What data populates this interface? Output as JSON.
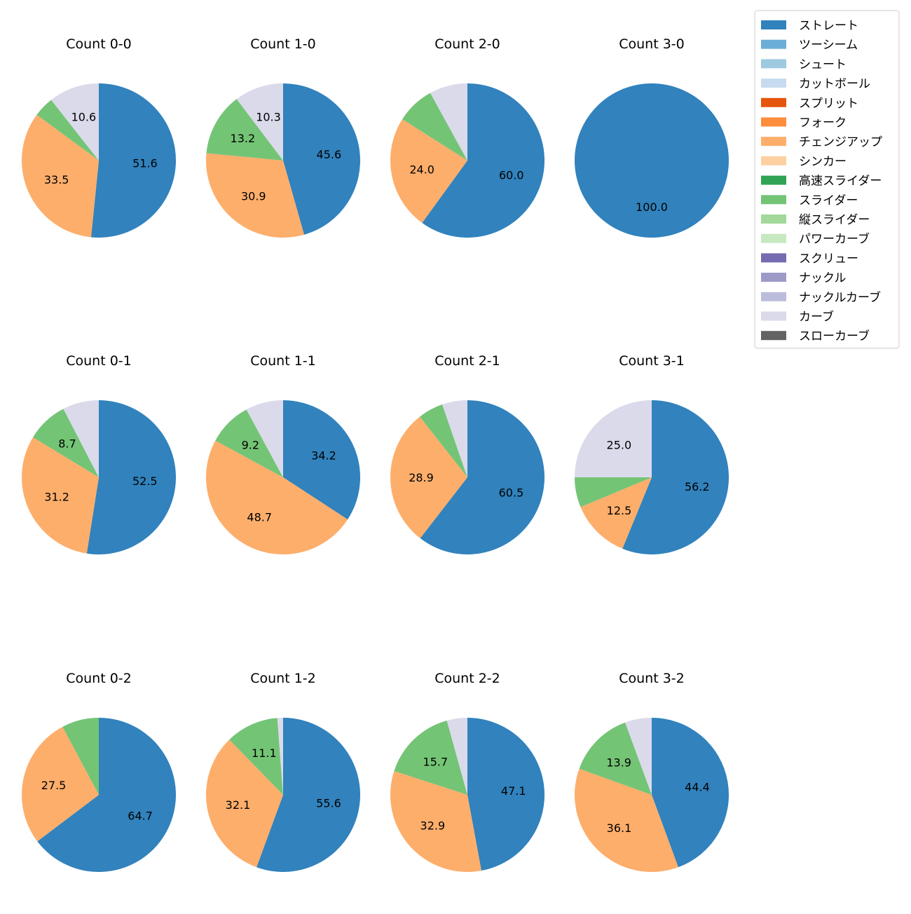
{
  "chart_data": {
    "type": "pie",
    "legend": {
      "placement": "upper-right",
      "entries": [
        {
          "name": "ストレート",
          "color": "#3182bd"
        },
        {
          "name": "ツーシーム",
          "color": "#6baed6"
        },
        {
          "name": "シュート",
          "color": "#9ecae1"
        },
        {
          "name": "カットボール",
          "color": "#c6dbef"
        },
        {
          "name": "スプリット",
          "color": "#e6550d"
        },
        {
          "name": "フォーク",
          "color": "#fd8d3c"
        },
        {
          "name": "チェンジアップ",
          "color": "#fdae6b"
        },
        {
          "name": "シンカー",
          "color": "#fdd0a2"
        },
        {
          "name": "高速スライダー",
          "color": "#31a354"
        },
        {
          "name": "スライダー",
          "color": "#74c476"
        },
        {
          "name": "縦スライダー",
          "color": "#a1d99b"
        },
        {
          "name": "パワーカーブ",
          "color": "#c7e9c0"
        },
        {
          "name": "スクリュー",
          "color": "#756bb1"
        },
        {
          "name": "ナックル",
          "color": "#9e9ac8"
        },
        {
          "name": "ナックルカーブ",
          "color": "#bcbddc"
        },
        {
          "name": "カーブ",
          "color": "#dadaeb"
        },
        {
          "name": "スローカーブ",
          "color": "#636363"
        }
      ]
    },
    "charts": [
      {
        "title": "Count 0-0",
        "slices": [
          {
            "pitch": "ストレート",
            "value": 51.6,
            "label": "51.6"
          },
          {
            "pitch": "チェンジアップ",
            "value": 33.5,
            "label": "33.5"
          },
          {
            "pitch": "スライダー",
            "value": 4.3,
            "label": ""
          },
          {
            "pitch": "カーブ",
            "value": 10.6,
            "label": "10.6"
          }
        ]
      },
      {
        "title": "Count 1-0",
        "slices": [
          {
            "pitch": "ストレート",
            "value": 45.6,
            "label": "45.6"
          },
          {
            "pitch": "チェンジアップ",
            "value": 30.9,
            "label": "30.9"
          },
          {
            "pitch": "スライダー",
            "value": 13.2,
            "label": "13.2"
          },
          {
            "pitch": "カーブ",
            "value": 10.3,
            "label": "10.3"
          }
        ]
      },
      {
        "title": "Count 2-0",
        "slices": [
          {
            "pitch": "ストレート",
            "value": 60.0,
            "label": "60.0"
          },
          {
            "pitch": "チェンジアップ",
            "value": 24.0,
            "label": "24.0"
          },
          {
            "pitch": "スライダー",
            "value": 8.0,
            "label": ""
          },
          {
            "pitch": "カーブ",
            "value": 8.0,
            "label": ""
          }
        ]
      },
      {
        "title": "Count 3-0",
        "slices": [
          {
            "pitch": "ストレート",
            "value": 100.0,
            "label": "100.0"
          }
        ]
      },
      {
        "title": "Count 0-1",
        "slices": [
          {
            "pitch": "ストレート",
            "value": 52.5,
            "label": "52.5"
          },
          {
            "pitch": "チェンジアップ",
            "value": 31.2,
            "label": "31.2"
          },
          {
            "pitch": "スライダー",
            "value": 8.7,
            "label": "8.7"
          },
          {
            "pitch": "カーブ",
            "value": 7.6,
            "label": ""
          }
        ]
      },
      {
        "title": "Count 1-1",
        "slices": [
          {
            "pitch": "ストレート",
            "value": 34.2,
            "label": "34.2"
          },
          {
            "pitch": "チェンジアップ",
            "value": 48.7,
            "label": "48.7"
          },
          {
            "pitch": "スライダー",
            "value": 9.2,
            "label": "9.2"
          },
          {
            "pitch": "カーブ",
            "value": 7.9,
            "label": ""
          }
        ]
      },
      {
        "title": "Count 2-1",
        "slices": [
          {
            "pitch": "ストレート",
            "value": 60.5,
            "label": "60.5"
          },
          {
            "pitch": "チェンジアップ",
            "value": 28.9,
            "label": "28.9"
          },
          {
            "pitch": "スライダー",
            "value": 5.3,
            "label": ""
          },
          {
            "pitch": "カーブ",
            "value": 5.3,
            "label": ""
          }
        ]
      },
      {
        "title": "Count 3-1",
        "slices": [
          {
            "pitch": "ストレート",
            "value": 56.2,
            "label": "56.2"
          },
          {
            "pitch": "チェンジアップ",
            "value": 12.5,
            "label": "12.5"
          },
          {
            "pitch": "スライダー",
            "value": 6.3,
            "label": ""
          },
          {
            "pitch": "カーブ",
            "value": 25.0,
            "label": "25.0"
          }
        ]
      },
      {
        "title": "Count 0-2",
        "slices": [
          {
            "pitch": "ストレート",
            "value": 64.7,
            "label": "64.7"
          },
          {
            "pitch": "チェンジアップ",
            "value": 27.5,
            "label": "27.5"
          },
          {
            "pitch": "スライダー",
            "value": 7.8,
            "label": ""
          }
        ]
      },
      {
        "title": "Count 1-2",
        "slices": [
          {
            "pitch": "ストレート",
            "value": 55.6,
            "label": "55.6"
          },
          {
            "pitch": "チェンジアップ",
            "value": 32.1,
            "label": "32.1"
          },
          {
            "pitch": "スライダー",
            "value": 11.1,
            "label": "11.1"
          },
          {
            "pitch": "カーブ",
            "value": 1.2,
            "label": ""
          }
        ]
      },
      {
        "title": "Count 2-2",
        "slices": [
          {
            "pitch": "ストレート",
            "value": 47.1,
            "label": "47.1"
          },
          {
            "pitch": "チェンジアップ",
            "value": 32.9,
            "label": "32.9"
          },
          {
            "pitch": "スライダー",
            "value": 15.7,
            "label": "15.7"
          },
          {
            "pitch": "カーブ",
            "value": 4.3,
            "label": ""
          }
        ]
      },
      {
        "title": "Count 3-2",
        "slices": [
          {
            "pitch": "ストレート",
            "value": 44.4,
            "label": "44.4"
          },
          {
            "pitch": "チェンジアップ",
            "value": 36.1,
            "label": "36.1"
          },
          {
            "pitch": "スライダー",
            "value": 13.9,
            "label": "13.9"
          },
          {
            "pitch": "カーブ",
            "value": 5.6,
            "label": ""
          }
        ]
      }
    ]
  }
}
